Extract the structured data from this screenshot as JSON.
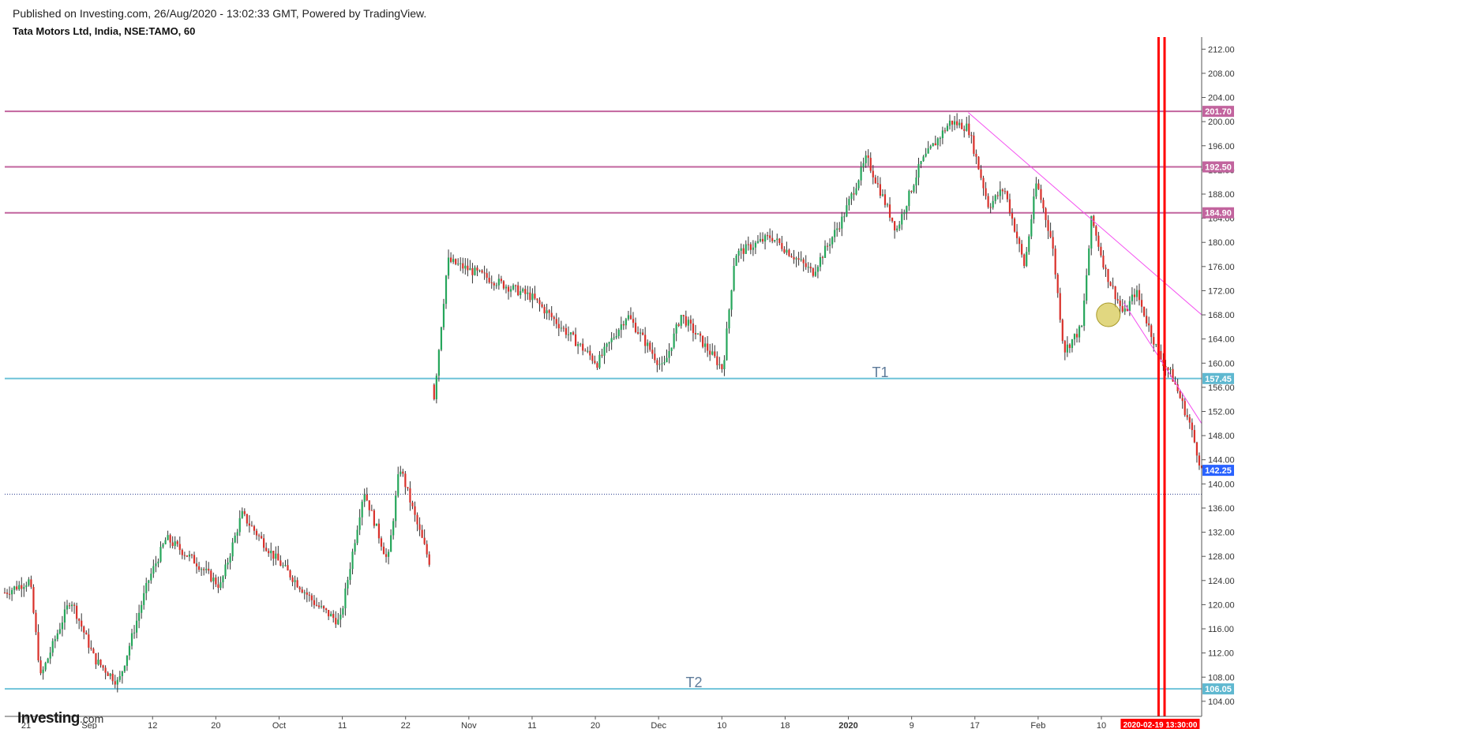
{
  "header": {
    "published": "Published on Investing.com, 26/Aug/2020 - 13:02:33 GMT, Powered by TradingView.",
    "symbol": "Tata Motors Ltd, India, NSE:TAMO, 60"
  },
  "logo": {
    "name": "Investing",
    "suffix": ".com"
  },
  "chart_data": {
    "type": "candlestick",
    "title": "",
    "x_axis": {
      "labels": [
        "21",
        "Sep",
        "12",
        "20",
        "Oct",
        "11",
        "22",
        "Nov",
        "11",
        "20",
        "Dec",
        "10",
        "18",
        "2020",
        "9",
        "17",
        "Feb",
        "10"
      ],
      "bold_labels": [
        "2020"
      ]
    },
    "y_axis": {
      "range": [
        101.5,
        214
      ],
      "ticks": [
        104,
        108,
        112,
        116,
        120,
        124,
        128,
        132,
        136,
        140,
        144,
        148,
        152,
        156,
        160,
        164,
        168,
        172,
        176,
        180,
        184,
        188,
        192,
        196,
        200,
        204,
        208,
        212
      ],
      "tick_precision": 2
    },
    "price_path": [
      {
        "t": 0,
        "p": 122
      },
      {
        "t": 0.021,
        "p": 124
      },
      {
        "t": 0.03,
        "p": 108
      },
      {
        "t": 0.055,
        "p": 121
      },
      {
        "t": 0.075,
        "p": 111
      },
      {
        "t": 0.095,
        "p": 107
      },
      {
        "t": 0.12,
        "p": 124
      },
      {
        "t": 0.135,
        "p": 131
      },
      {
        "t": 0.16,
        "p": 127
      },
      {
        "t": 0.18,
        "p": 123
      },
      {
        "t": 0.198,
        "p": 135
      },
      {
        "t": 0.225,
        "p": 128
      },
      {
        "t": 0.26,
        "p": 120
      },
      {
        "t": 0.28,
        "p": 117
      },
      {
        "t": 0.3,
        "p": 139
      },
      {
        "t": 0.32,
        "p": 127
      },
      {
        "t": 0.33,
        "p": 143
      },
      {
        "t": 0.345,
        "p": 133
      },
      {
        "t": 0.355,
        "p": 127
      },
      {
        "t": 0.357,
        "p": 151
      },
      {
        "t": 0.37,
        "p": 177
      },
      {
        "t": 0.44,
        "p": 171
      },
      {
        "t": 0.495,
        "p": 160
      },
      {
        "t": 0.52,
        "p": 168
      },
      {
        "t": 0.55,
        "p": 159
      },
      {
        "t": 0.565,
        "p": 168
      },
      {
        "t": 0.6,
        "p": 159
      },
      {
        "t": 0.61,
        "p": 178
      },
      {
        "t": 0.64,
        "p": 181
      },
      {
        "t": 0.675,
        "p": 175
      },
      {
        "t": 0.7,
        "p": 184
      },
      {
        "t": 0.72,
        "p": 194
      },
      {
        "t": 0.745,
        "p": 182
      },
      {
        "t": 0.765,
        "p": 193
      },
      {
        "t": 0.79,
        "p": 200
      },
      {
        "t": 0.805,
        "p": 199
      },
      {
        "t": 0.822,
        "p": 186
      },
      {
        "t": 0.835,
        "p": 189
      },
      {
        "t": 0.852,
        "p": 176
      },
      {
        "t": 0.862,
        "p": 190
      },
      {
        "t": 0.875,
        "p": 180
      },
      {
        "t": 0.885,
        "p": 162
      },
      {
        "t": 0.9,
        "p": 166
      },
      {
        "t": 0.908,
        "p": 184
      },
      {
        "t": 0.92,
        "p": 175
      },
      {
        "t": 0.935,
        "p": 168
      },
      {
        "t": 0.945,
        "p": 172
      },
      {
        "t": 0.965,
        "p": 161
      },
      {
        "t": 0.975,
        "p": 158
      },
      {
        "t": 0.99,
        "p": 150
      },
      {
        "t": 1.0,
        "p": 142.25
      }
    ],
    "gap_index": 0.357,
    "levels": [
      {
        "value": 201.7,
        "label": "201.70",
        "color": "#c2649e",
        "kind": "resistance"
      },
      {
        "value": 192.5,
        "label": "192.50",
        "color": "#c2649e",
        "kind": "resistance"
      },
      {
        "value": 184.9,
        "label": "184.90",
        "color": "#c2649e",
        "kind": "resistance"
      },
      {
        "value": 157.45,
        "label": "157.45",
        "color": "#6fc3d9",
        "kind": "target",
        "name": "T1"
      },
      {
        "value": 106.05,
        "label": "106.05",
        "color": "#6fc3d9",
        "kind": "target",
        "name": "T2"
      }
    ],
    "last_price": {
      "value": 142.25,
      "label": "142.25",
      "color": "#2962ff"
    },
    "dotted_line": {
      "value": 138.3,
      "color": "#2b3d8f"
    },
    "trendlines": [
      {
        "from": {
          "t": 0.805,
          "p": 201.5
        },
        "to": {
          "t": 1.0,
          "p": 168
        }
      },
      {
        "from": {
          "t": 0.935,
          "p": 170
        },
        "to": {
          "t": 1.0,
          "p": 150
        }
      }
    ],
    "circle": {
      "t": 0.922,
      "p": 168
    },
    "vertical_markers": [
      {
        "t": 0.964
      },
      {
        "t": 0.969
      }
    ],
    "cursor_time_label": "2020-02-19 13:30:00",
    "colors": {
      "up": "#26a65b",
      "down": "#d9302a",
      "wick": "#333333",
      "trendline": "#f44df0",
      "marker": "#ff0000",
      "circle_fill": "#d4c64a",
      "target_text": "#5e7b9a"
    }
  }
}
